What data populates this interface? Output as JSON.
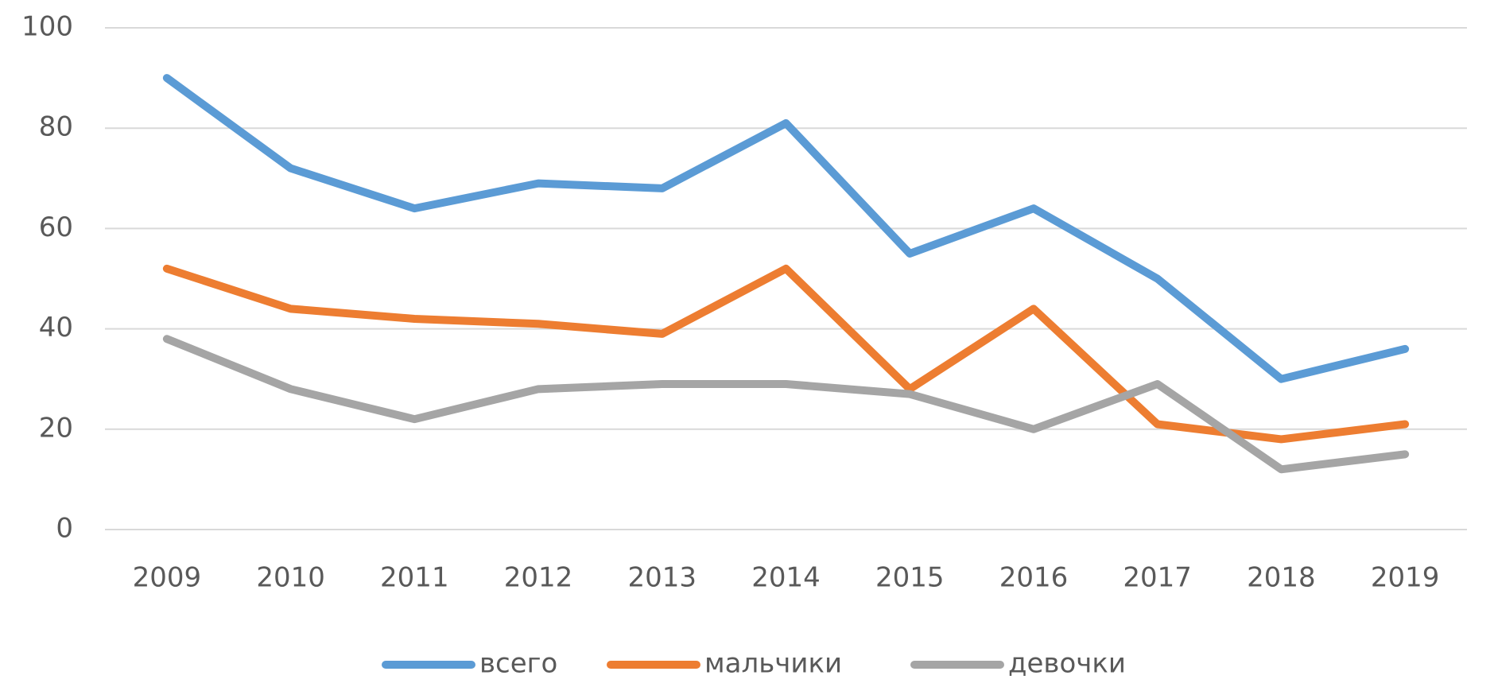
{
  "chart_data": {
    "type": "line",
    "categories": [
      "2009",
      "2010",
      "2011",
      "2012",
      "2013",
      "2014",
      "2015",
      "2016",
      "2017",
      "2018",
      "2019"
    ],
    "series": [
      {
        "name": "всего",
        "color": "#5b9bd5",
        "values": [
          90,
          72,
          64,
          69,
          68,
          81,
          55,
          64,
          50,
          30,
          36
        ]
      },
      {
        "name": "мальчики",
        "color": "#ed7d31",
        "values": [
          52,
          44,
          42,
          41,
          39,
          52,
          28,
          44,
          21,
          18,
          21
        ]
      },
      {
        "name": "девочки",
        "color": "#a5a5a5",
        "values": [
          38,
          28,
          22,
          28,
          29,
          29,
          27,
          20,
          29,
          12,
          15
        ]
      }
    ],
    "ylim": [
      0,
      100
    ],
    "yticks": [
      0,
      20,
      40,
      60,
      80,
      100
    ],
    "grid": true,
    "legend": "bottom"
  }
}
